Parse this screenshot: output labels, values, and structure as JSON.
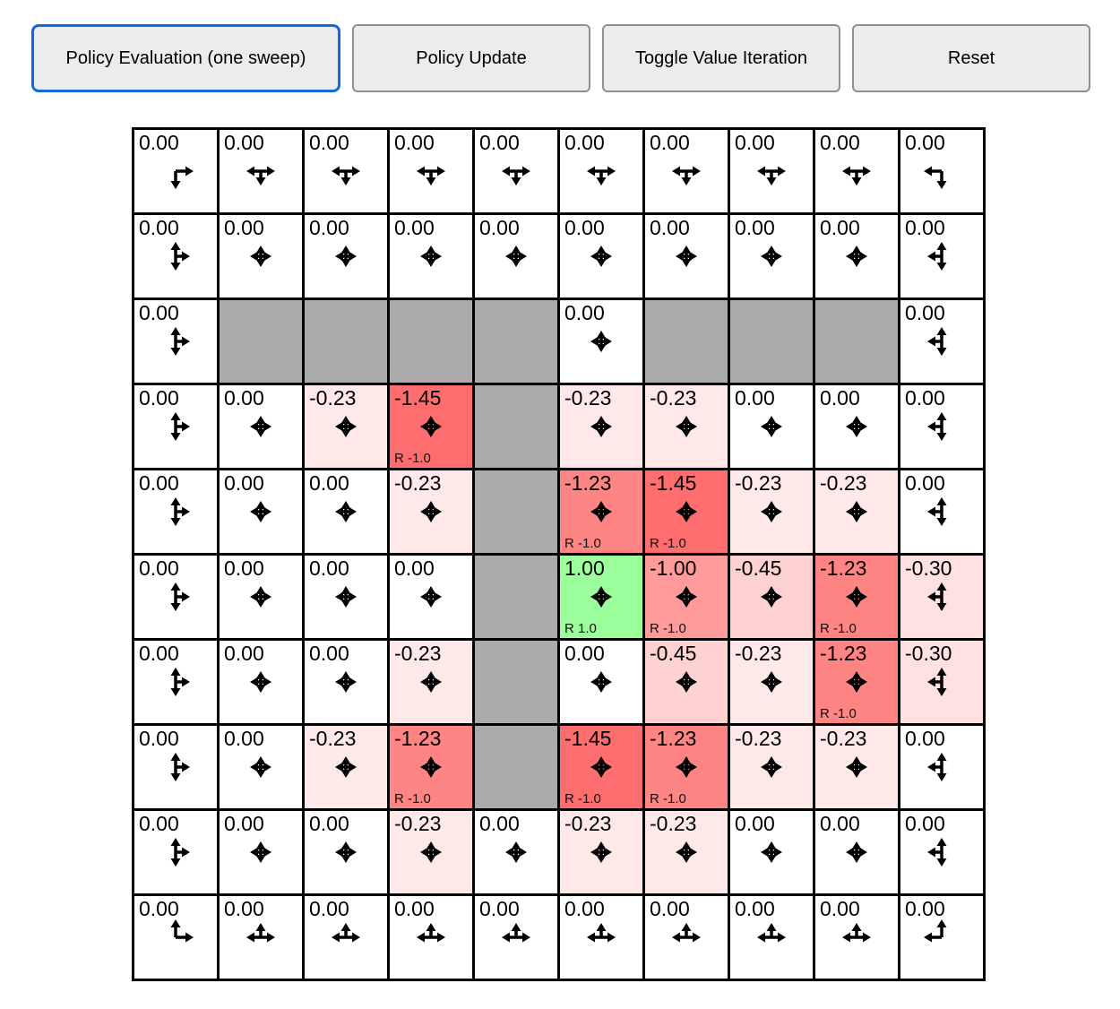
{
  "toolbar": {
    "active_border_color": "#1667D9",
    "buttons": [
      {
        "label": "Policy Evaluation (one sweep)",
        "active": true
      },
      {
        "label": "Policy Update",
        "active": false
      },
      {
        "label": "Toggle Value Iteration",
        "active": false
      },
      {
        "label": "Reset",
        "active": false
      }
    ]
  },
  "grid": {
    "rows": 10,
    "cols": 10,
    "wall_color": "#AAAAAA",
    "arrow_key": {
      "u": "up",
      "d": "down",
      "l": "left",
      "r": "right"
    },
    "value_colors": {
      "0.00": "#FFFFFF",
      "-0.23": "#FFE8E8",
      "-0.30": "#FFE1E1",
      "-0.45": "#FFD2D2",
      "-1.00": "#FF9B9B",
      "-1.23": "#FF8484",
      "-1.45": "#FF6E6E",
      "1.00": "#9BFF9B"
    },
    "cells": [
      [
        {
          "v": "0.00",
          "bg": "#FFFFFF",
          "arrows": "dr",
          "r": null
        },
        {
          "v": "0.00",
          "bg": "#FFFFFF",
          "arrows": "dlr",
          "r": null
        },
        {
          "v": "0.00",
          "bg": "#FFFFFF",
          "arrows": "dlr",
          "r": null
        },
        {
          "v": "0.00",
          "bg": "#FFFFFF",
          "arrows": "dlr",
          "r": null
        },
        {
          "v": "0.00",
          "bg": "#FFFFFF",
          "arrows": "dlr",
          "r": null
        },
        {
          "v": "0.00",
          "bg": "#FFFFFF",
          "arrows": "dlr",
          "r": null
        },
        {
          "v": "0.00",
          "bg": "#FFFFFF",
          "arrows": "dlr",
          "r": null
        },
        {
          "v": "0.00",
          "bg": "#FFFFFF",
          "arrows": "dlr",
          "r": null
        },
        {
          "v": "0.00",
          "bg": "#FFFFFF",
          "arrows": "dlr",
          "r": null
        },
        {
          "v": "0.00",
          "bg": "#FFFFFF",
          "arrows": "dl",
          "r": null
        }
      ],
      [
        {
          "v": "0.00",
          "bg": "#FFFFFF",
          "arrows": "udr",
          "r": null
        },
        {
          "v": "0.00",
          "bg": "#FFFFFF",
          "arrows": "udlr",
          "r": null
        },
        {
          "v": "0.00",
          "bg": "#FFFFFF",
          "arrows": "udlr",
          "r": null
        },
        {
          "v": "0.00",
          "bg": "#FFFFFF",
          "arrows": "udlr",
          "r": null
        },
        {
          "v": "0.00",
          "bg": "#FFFFFF",
          "arrows": "udlr",
          "r": null
        },
        {
          "v": "0.00",
          "bg": "#FFFFFF",
          "arrows": "udlr",
          "r": null
        },
        {
          "v": "0.00",
          "bg": "#FFFFFF",
          "arrows": "udlr",
          "r": null
        },
        {
          "v": "0.00",
          "bg": "#FFFFFF",
          "arrows": "udlr",
          "r": null
        },
        {
          "v": "0.00",
          "bg": "#FFFFFF",
          "arrows": "udlr",
          "r": null
        },
        {
          "v": "0.00",
          "bg": "#FFFFFF",
          "arrows": "udl",
          "r": null
        }
      ],
      [
        {
          "v": "0.00",
          "bg": "#FFFFFF",
          "arrows": "udr",
          "r": null
        },
        {
          "wall": true
        },
        {
          "wall": true
        },
        {
          "wall": true
        },
        {
          "wall": true
        },
        {
          "v": "0.00",
          "bg": "#FFFFFF",
          "arrows": "udlr",
          "r": null
        },
        {
          "wall": true
        },
        {
          "wall": true
        },
        {
          "wall": true
        },
        {
          "v": "0.00",
          "bg": "#FFFFFF",
          "arrows": "udl",
          "r": null
        }
      ],
      [
        {
          "v": "0.00",
          "bg": "#FFFFFF",
          "arrows": "udr",
          "r": null
        },
        {
          "v": "0.00",
          "bg": "#FFFFFF",
          "arrows": "udlr",
          "r": null
        },
        {
          "v": "-0.23",
          "bg": "#FFE8E8",
          "arrows": "udlr",
          "r": null
        },
        {
          "v": "-1.45",
          "bg": "#FF6E6E",
          "arrows": "udlr",
          "r": "R -1.0"
        },
        {
          "wall": true
        },
        {
          "v": "-0.23",
          "bg": "#FFE8E8",
          "arrows": "udlr",
          "r": null
        },
        {
          "v": "-0.23",
          "bg": "#FFE8E8",
          "arrows": "udlr",
          "r": null
        },
        {
          "v": "0.00",
          "bg": "#FFFFFF",
          "arrows": "udlr",
          "r": null
        },
        {
          "v": "0.00",
          "bg": "#FFFFFF",
          "arrows": "udlr",
          "r": null
        },
        {
          "v": "0.00",
          "bg": "#FFFFFF",
          "arrows": "udl",
          "r": null
        }
      ],
      [
        {
          "v": "0.00",
          "bg": "#FFFFFF",
          "arrows": "udr",
          "r": null
        },
        {
          "v": "0.00",
          "bg": "#FFFFFF",
          "arrows": "udlr",
          "r": null
        },
        {
          "v": "0.00",
          "bg": "#FFFFFF",
          "arrows": "udlr",
          "r": null
        },
        {
          "v": "-0.23",
          "bg": "#FFE8E8",
          "arrows": "udlr",
          "r": null
        },
        {
          "wall": true
        },
        {
          "v": "-1.23",
          "bg": "#FF8484",
          "arrows": "udlr",
          "r": "R -1.0"
        },
        {
          "v": "-1.45",
          "bg": "#FF6E6E",
          "arrows": "udlr",
          "r": "R -1.0"
        },
        {
          "v": "-0.23",
          "bg": "#FFE8E8",
          "arrows": "udlr",
          "r": null
        },
        {
          "v": "-0.23",
          "bg": "#FFE8E8",
          "arrows": "udlr",
          "r": null
        },
        {
          "v": "0.00",
          "bg": "#FFFFFF",
          "arrows": "udl",
          "r": null
        }
      ],
      [
        {
          "v": "0.00",
          "bg": "#FFFFFF",
          "arrows": "udr",
          "r": null
        },
        {
          "v": "0.00",
          "bg": "#FFFFFF",
          "arrows": "udlr",
          "r": null
        },
        {
          "v": "0.00",
          "bg": "#FFFFFF",
          "arrows": "udlr",
          "r": null
        },
        {
          "v": "0.00",
          "bg": "#FFFFFF",
          "arrows": "udlr",
          "r": null
        },
        {
          "wall": true
        },
        {
          "v": "1.00",
          "bg": "#9BFF9B",
          "arrows": "udlr",
          "r": "R 1.0"
        },
        {
          "v": "-1.00",
          "bg": "#FF9B9B",
          "arrows": "udlr",
          "r": "R -1.0"
        },
        {
          "v": "-0.45",
          "bg": "#FFD2D2",
          "arrows": "udlr",
          "r": null
        },
        {
          "v": "-1.23",
          "bg": "#FF8484",
          "arrows": "udlr",
          "r": "R -1.0"
        },
        {
          "v": "-0.30",
          "bg": "#FFE1E1",
          "arrows": "udl",
          "r": null
        }
      ],
      [
        {
          "v": "0.00",
          "bg": "#FFFFFF",
          "arrows": "udr",
          "r": null
        },
        {
          "v": "0.00",
          "bg": "#FFFFFF",
          "arrows": "udlr",
          "r": null
        },
        {
          "v": "0.00",
          "bg": "#FFFFFF",
          "arrows": "udlr",
          "r": null
        },
        {
          "v": "-0.23",
          "bg": "#FFE8E8",
          "arrows": "udlr",
          "r": null
        },
        {
          "wall": true
        },
        {
          "v": "0.00",
          "bg": "#FFFFFF",
          "arrows": "udlr",
          "r": null
        },
        {
          "v": "-0.45",
          "bg": "#FFD2D2",
          "arrows": "udlr",
          "r": null
        },
        {
          "v": "-0.23",
          "bg": "#FFE8E8",
          "arrows": "udlr",
          "r": null
        },
        {
          "v": "-1.23",
          "bg": "#FF8484",
          "arrows": "udlr",
          "r": "R -1.0"
        },
        {
          "v": "-0.30",
          "bg": "#FFE1E1",
          "arrows": "udl",
          "r": null
        }
      ],
      [
        {
          "v": "0.00",
          "bg": "#FFFFFF",
          "arrows": "udr",
          "r": null
        },
        {
          "v": "0.00",
          "bg": "#FFFFFF",
          "arrows": "udlr",
          "r": null
        },
        {
          "v": "-0.23",
          "bg": "#FFE8E8",
          "arrows": "udlr",
          "r": null
        },
        {
          "v": "-1.23",
          "bg": "#FF8484",
          "arrows": "udlr",
          "r": "R -1.0"
        },
        {
          "wall": true
        },
        {
          "v": "-1.45",
          "bg": "#FF6E6E",
          "arrows": "udlr",
          "r": "R -1.0"
        },
        {
          "v": "-1.23",
          "bg": "#FF8484",
          "arrows": "udlr",
          "r": "R -1.0"
        },
        {
          "v": "-0.23",
          "bg": "#FFE8E8",
          "arrows": "udlr",
          "r": null
        },
        {
          "v": "-0.23",
          "bg": "#FFE8E8",
          "arrows": "udlr",
          "r": null
        },
        {
          "v": "0.00",
          "bg": "#FFFFFF",
          "arrows": "udl",
          "r": null
        }
      ],
      [
        {
          "v": "0.00",
          "bg": "#FFFFFF",
          "arrows": "udr",
          "r": null
        },
        {
          "v": "0.00",
          "bg": "#FFFFFF",
          "arrows": "udlr",
          "r": null
        },
        {
          "v": "0.00",
          "bg": "#FFFFFF",
          "arrows": "udlr",
          "r": null
        },
        {
          "v": "-0.23",
          "bg": "#FFE8E8",
          "arrows": "udlr",
          "r": null
        },
        {
          "v": "0.00",
          "bg": "#FFFFFF",
          "arrows": "udlr",
          "r": null
        },
        {
          "v": "-0.23",
          "bg": "#FFE8E8",
          "arrows": "udlr",
          "r": null
        },
        {
          "v": "-0.23",
          "bg": "#FFE8E8",
          "arrows": "udlr",
          "r": null
        },
        {
          "v": "0.00",
          "bg": "#FFFFFF",
          "arrows": "udlr",
          "r": null
        },
        {
          "v": "0.00",
          "bg": "#FFFFFF",
          "arrows": "udlr",
          "r": null
        },
        {
          "v": "0.00",
          "bg": "#FFFFFF",
          "arrows": "udl",
          "r": null
        }
      ],
      [
        {
          "v": "0.00",
          "bg": "#FFFFFF",
          "arrows": "ur",
          "r": null
        },
        {
          "v": "0.00",
          "bg": "#FFFFFF",
          "arrows": "ulr",
          "r": null
        },
        {
          "v": "0.00",
          "bg": "#FFFFFF",
          "arrows": "ulr",
          "r": null
        },
        {
          "v": "0.00",
          "bg": "#FFFFFF",
          "arrows": "ulr",
          "r": null
        },
        {
          "v": "0.00",
          "bg": "#FFFFFF",
          "arrows": "ulr",
          "r": null
        },
        {
          "v": "0.00",
          "bg": "#FFFFFF",
          "arrows": "ulr",
          "r": null
        },
        {
          "v": "0.00",
          "bg": "#FFFFFF",
          "arrows": "ulr",
          "r": null
        },
        {
          "v": "0.00",
          "bg": "#FFFFFF",
          "arrows": "ulr",
          "r": null
        },
        {
          "v": "0.00",
          "bg": "#FFFFFF",
          "arrows": "ulr",
          "r": null
        },
        {
          "v": "0.00",
          "bg": "#FFFFFF",
          "arrows": "ul",
          "r": null
        }
      ]
    ]
  }
}
